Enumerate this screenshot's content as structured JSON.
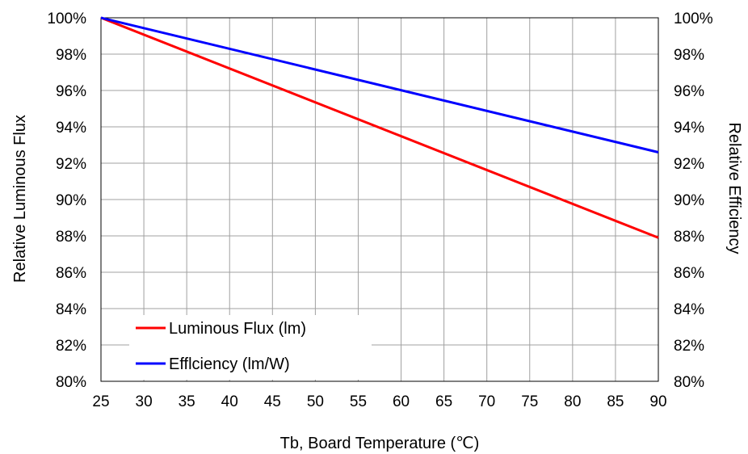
{
  "chart_data": {
    "type": "line",
    "xlabel": "Tb, Board Temperature (℃)",
    "ylabel_left": "Relative Luminous Flux",
    "ylabel_right": "Relative Efficiency",
    "x_ticks": [
      "25",
      "30",
      "35",
      "40",
      "45",
      "50",
      "55",
      "60",
      "65",
      "70",
      "75",
      "80",
      "85",
      "90"
    ],
    "y_ticks": [
      "80%",
      "82%",
      "84%",
      "86%",
      "88%",
      "90%",
      "92%",
      "94%",
      "96%",
      "98%",
      "100%"
    ],
    "xlim": [
      25,
      90
    ],
    "ylim": [
      80,
      100
    ],
    "grid": true,
    "legend_position": "bottom-left",
    "series": [
      {
        "name": "Luminous Flux (lm)",
        "color": "#ff0000",
        "x": [
          25,
          90
        ],
        "y": [
          100,
          87.9
        ]
      },
      {
        "name": "Efflciency (lm/W)",
        "color": "#0000ff",
        "x": [
          25,
          90
        ],
        "y": [
          100,
          92.6
        ]
      }
    ]
  }
}
